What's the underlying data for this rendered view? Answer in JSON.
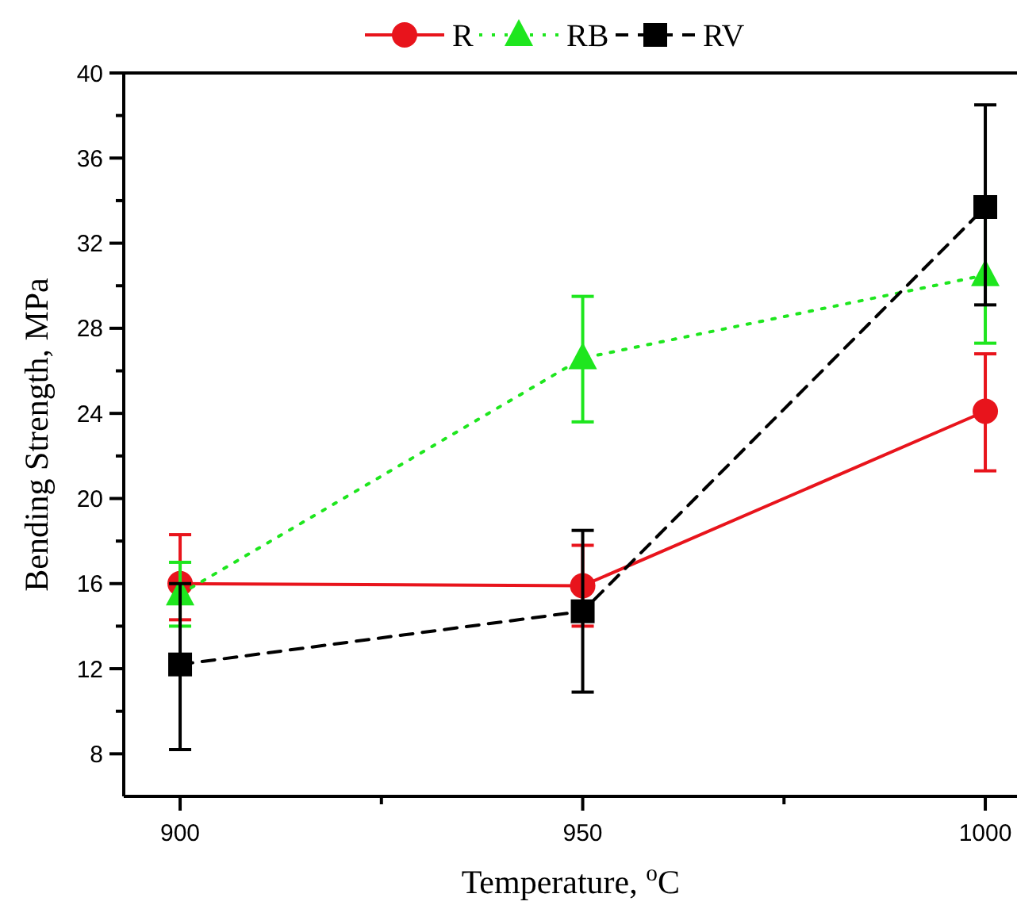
{
  "chart_data": {
    "type": "line",
    "xlabel": "Temperature, $^{o}$C",
    "ylabel": "Bending Strength, MPa",
    "x": [
      900,
      950,
      1000
    ],
    "xlim": [
      893,
      1004
    ],
    "xticks": [
      900,
      {
        "value": 925,
        "label": null
      },
      950,
      {
        "value": 975,
        "label": null
      },
      1000
    ],
    "ylim": [
      6,
      40
    ],
    "yticks": [
      8,
      {
        "value": 10,
        "label": null
      },
      12,
      {
        "value": 14,
        "label": null
      },
      16,
      {
        "value": 18,
        "label": null
      },
      20,
      {
        "value": 22,
        "label": null
      },
      24,
      {
        "value": 26,
        "label": null
      },
      28,
      {
        "value": 30,
        "label": null
      },
      32,
      {
        "value": 34,
        "label": null
      },
      36,
      {
        "value": 38,
        "label": null
      },
      40
    ],
    "grid": false,
    "legend": "top",
    "series": [
      {
        "name": "R",
        "color": "#e8141c",
        "values": [
          16.0,
          15.9,
          24.1
        ],
        "errors": [
          [
            14.3,
            18.3
          ],
          1.9,
          [
            21.3,
            26.8
          ]
        ],
        "marker": "circle",
        "line_style": "solid"
      },
      {
        "name": "RB",
        "color": "#1ee61e",
        "values": [
          15.5,
          26.6,
          30.5
        ],
        "errors": [
          1.5,
          [
            23.6,
            29.5
          ],
          3.2
        ],
        "marker": "triangle",
        "line_style": "dotted"
      },
      {
        "name": "RV",
        "color": "#000000",
        "values": [
          12.2,
          14.7,
          33.7
        ],
        "errors": [
          [
            8.2,
            16.0
          ],
          [
            10.9,
            18.5
          ],
          [
            29.1,
            38.5
          ]
        ],
        "marker": "square",
        "line_style": "dashed"
      }
    ]
  }
}
